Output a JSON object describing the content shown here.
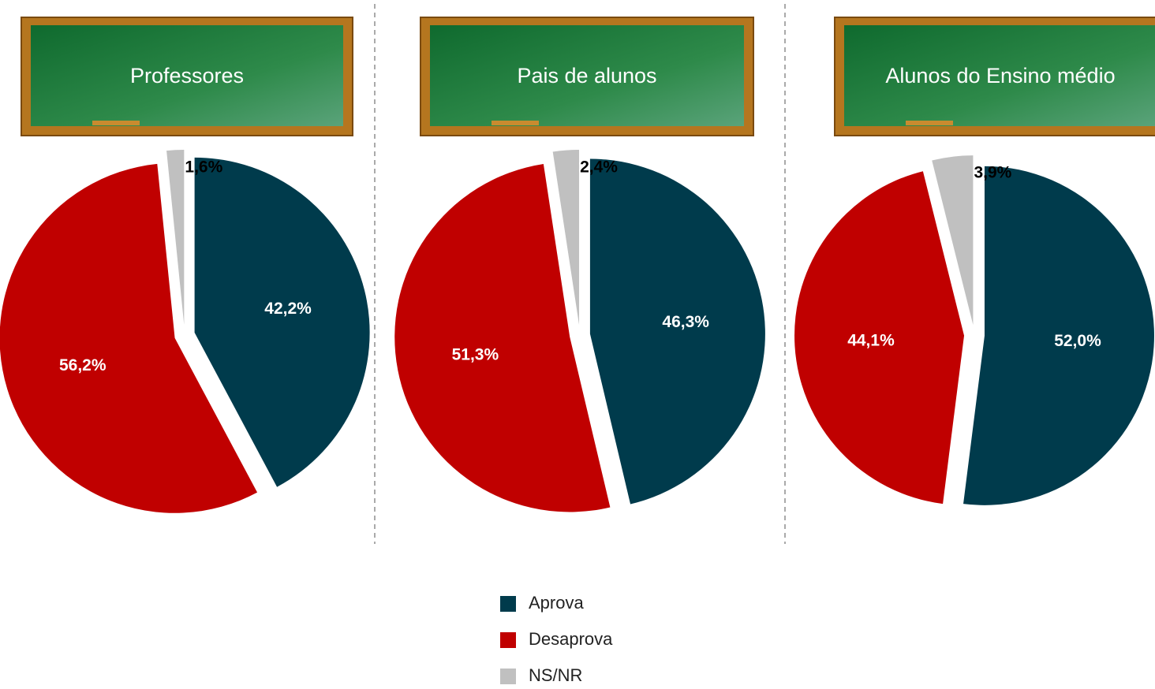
{
  "chart_data": [
    {
      "type": "pie",
      "title": "Professores",
      "values": [
        42.2,
        56.2,
        1.6
      ],
      "value_labels": [
        "42,2%",
        "56,2%",
        "1,6%"
      ]
    },
    {
      "type": "pie",
      "title": "Pais de alunos",
      "values": [
        46.3,
        51.3,
        2.4
      ],
      "value_labels": [
        "46,3%",
        "51,3%",
        "2,4%"
      ]
    },
    {
      "type": "pie",
      "title": "Alunos do Ensino médio",
      "values": [
        52.0,
        44.1,
        3.9
      ],
      "value_labels": [
        "52,0%",
        "44,1%",
        "3,9%"
      ]
    }
  ],
  "legend": {
    "labels": [
      "Aprova",
      "Desaprova",
      "NS/NR"
    ],
    "colors": [
      "#003b4c",
      "#c00000",
      "#c0c0c0"
    ]
  }
}
